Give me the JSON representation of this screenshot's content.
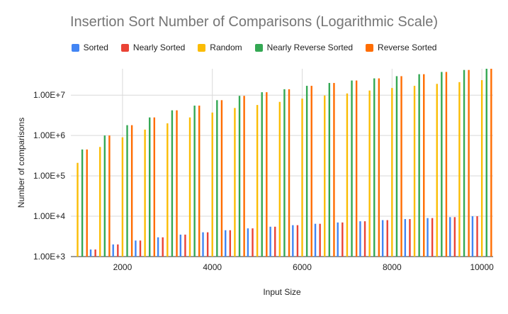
{
  "chart_data": {
    "type": "bar",
    "title": "Insertion Sort Number of Comparisons (Logarithmic Scale)",
    "xlabel": "Input Size",
    "ylabel": "Number of comparisons",
    "yscale": "log",
    "ylim": [
      1000,
      45000000
    ],
    "xlim": [
      850,
      10250
    ],
    "x_ticks": [
      "2000",
      "4000",
      "6000",
      "8000",
      "10000"
    ],
    "y_ticks": [
      "1.00E+3",
      "1.00E+4",
      "1.00E+5",
      "1.00E+6",
      "1.00E+7"
    ],
    "grid": "vertical and horizontal",
    "legend_position": "top",
    "x": [
      1000,
      1500,
      2000,
      2500,
      3000,
      3500,
      4000,
      4500,
      5000,
      5500,
      6000,
      6500,
      7000,
      7500,
      8000,
      8500,
      9000,
      9500,
      10000
    ],
    "series": [
      {
        "name": "Sorted",
        "color": "#4285F4",
        "values": [
          1000,
          1500,
          2000,
          2500,
          3000,
          3500,
          4000,
          4500,
          5000,
          5500,
          6000,
          6500,
          7000,
          7500,
          8000,
          8500,
          9000,
          9500,
          10000
        ]
      },
      {
        "name": "Nearly Sorted",
        "color": "#EA4335",
        "values": [
          1000,
          1500,
          2000,
          2500,
          3000,
          3500,
          4000,
          4500,
          5000,
          5500,
          6000,
          6500,
          7000,
          7500,
          8000,
          8500,
          9000,
          9500,
          10000
        ]
      },
      {
        "name": "Random",
        "color": "#FBBC04",
        "values": [
          210000,
          520000,
          900000,
          1400000,
          2000000,
          2800000,
          3700000,
          4800000,
          5700000,
          6800000,
          8200000,
          9800000,
          11000000,
          13000000,
          15000000,
          17000000,
          19000000,
          21000000,
          23500000
        ]
      },
      {
        "name": "Nearly Reverse Sorted",
        "color": "#34A853",
        "values": [
          450000,
          1000000,
          1800000,
          2800000,
          4200000,
          5500000,
          7500000,
          9600000,
          11800000,
          14000000,
          17000000,
          20000000,
          23000000,
          26000000,
          29500000,
          33000000,
          37500000,
          42000000,
          46000000
        ]
      },
      {
        "name": "Reverse Sorted",
        "color": "#FF6D01",
        "values": [
          450000,
          1000000,
          1800000,
          2800000,
          4200000,
          5500000,
          7500000,
          9600000,
          11800000,
          14000000,
          17000000,
          20000000,
          23000000,
          26000000,
          29500000,
          33000000,
          37500000,
          42000000,
          46000000
        ]
      }
    ]
  }
}
